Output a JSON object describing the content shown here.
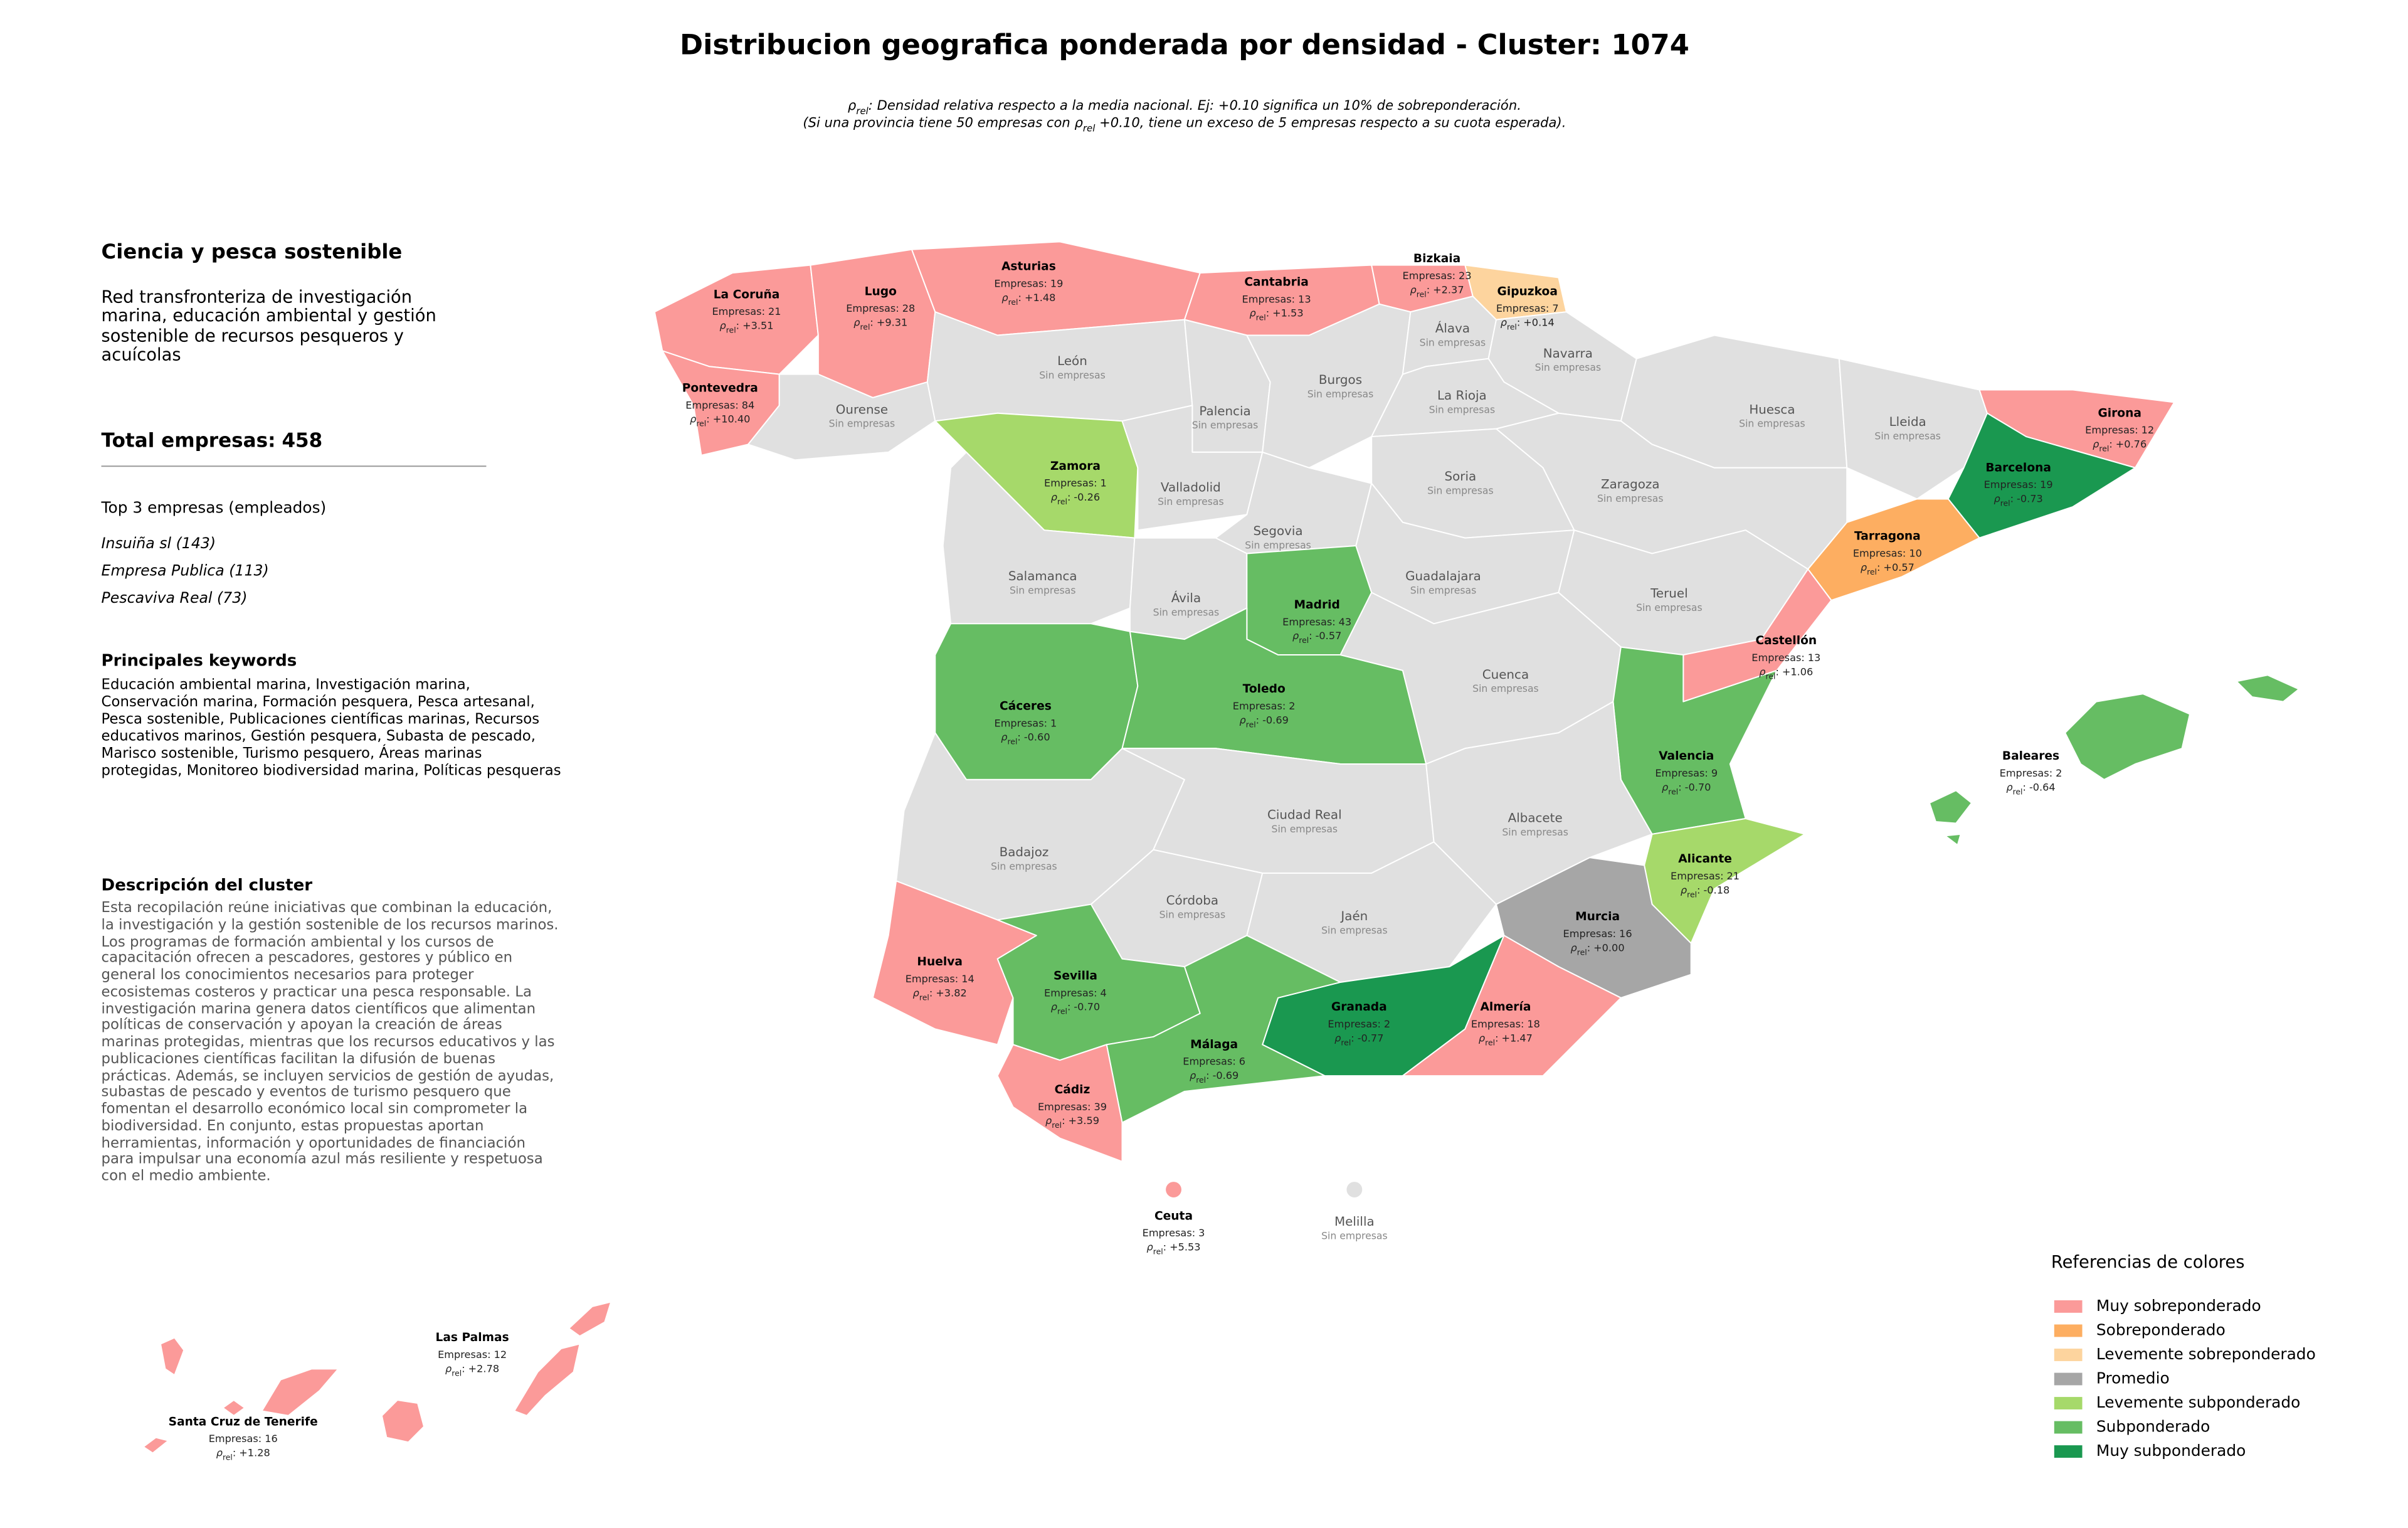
{
  "title": "Distribucion geografica ponderada por densidad - Cluster: 1074",
  "note": {
    "lines": [
      [
        {
          "text": "ρ"
        },
        {
          "text": "rel",
          "subscript": true
        },
        {
          "text": ": Densidad relativa respecto a la media nacional. Ej: +0.10 significa un 10% de sobreponderación."
        }
      ],
      [
        {
          "text": "(Si una provincia tiene 50 empresas con "
        },
        {
          "text": "ρ"
        },
        {
          "text": "rel",
          "subscript": true
        },
        {
          "text": " +0.10, tiene un exceso de 5 empresas respecto a su cuota esperada)."
        }
      ]
    ]
  },
  "panel": {
    "heading": "Ciencia y pesca sostenible",
    "subheading": "Red transfronteriza de investigación marina, educación ambiental y gestión sostenible de recursos pesqueros y acuícolas",
    "total_label": "Total empresas:",
    "total": 458,
    "top_heading": "Top 3 empresas (empleados)",
    "top_companies": [
      "Insuiña sl (143)",
      "Empresa Publica (113)",
      "Pescaviva Real (73)"
    ],
    "keywords_heading": "Principales keywords",
    "keywords": "Educación ambiental marina, Investigación marina, Conservación marina, Formación pesquera, Pesca artesanal, Pesca sostenible, Publicaciones científicas marinas, Recursos educativos marinos, Gestión pesquera, Subasta de pescado, Marisco sostenible, Turismo pesquero, Áreas marinas protegidas, Monitoreo biodiversidad marina, Políticas pesqueras",
    "description_heading": "Descripción del cluster",
    "description": "Esta recopilación reúne iniciativas que combinan la educación, la investigación y la gestión sostenible de los recursos marinos. Los programas de formación ambiental y los cursos de capacitación ofrecen a pescadores, gestores y público en general los conocimientos necesarios para proteger ecosistemas costeros y practicar una pesca responsable. La investigación marina genera datos científicos que alimentan políticas de conservación y apoyan la creación de áreas marinas protegidas, mientras que los recursos educativos y las publicaciones científicas facilitan la difusión de buenas prácticas. Además, se incluyen servicios de gestión de ayudas, subastas de pescado y eventos de turismo pesquero que fomentan el desarrollo económico local sin comprometer la biodiversidad. En conjunto, estas propuestas aportan herramientas, información y oportunidades de financiación para impulsar una economía azul más resiliente y respetuosa con el medio ambiente."
  },
  "labels": {
    "companies": "Empresas:",
    "rho_symbol": "ρ",
    "rho_subscript": "rel",
    "rho_suffix": ":",
    "none": "Sin empresas"
  },
  "provinces": [
    {
      "name": "La Coruña",
      "companies": 21,
      "rho": "+3.51",
      "color": "#fb9a99"
    },
    {
      "name": "Lugo",
      "companies": 28,
      "rho": "+9.31",
      "color": "#fb9a99"
    },
    {
      "name": "Asturias",
      "companies": 19,
      "rho": "+1.48",
      "color": "#fb9a99"
    },
    {
      "name": "Cantabria",
      "companies": 13,
      "rho": "+1.53",
      "color": "#fb9a99"
    },
    {
      "name": "Bizkaia",
      "companies": 23,
      "rho": "+2.37",
      "color": "#fb9a99"
    },
    {
      "name": "Gipuzkoa",
      "companies": 7,
      "rho": "+0.14",
      "color": "#fdd49e"
    },
    {
      "name": "Pontevedra",
      "companies": 84,
      "rho": "+10.40",
      "color": "#fb9a99"
    },
    {
      "name": "Ourense",
      "color": "#e0e0e0"
    },
    {
      "name": "León",
      "color": "#e0e0e0"
    },
    {
      "name": "Palencia",
      "color": "#e0e0e0"
    },
    {
      "name": "Burgos",
      "color": "#e0e0e0"
    },
    {
      "name": "Álava",
      "color": "#e0e0e0"
    },
    {
      "name": "Navarra",
      "color": "#e0e0e0"
    },
    {
      "name": "La Rioja",
      "color": "#e0e0e0"
    },
    {
      "name": "Huesca",
      "color": "#e0e0e0"
    },
    {
      "name": "Lleida",
      "color": "#e0e0e0"
    },
    {
      "name": "Girona",
      "companies": 12,
      "rho": "+0.76",
      "color": "#fb9a99"
    },
    {
      "name": "Barcelona",
      "companies": 19,
      "rho": "-0.73",
      "color": "#1a9850"
    },
    {
      "name": "Tarragona",
      "companies": 10,
      "rho": "+0.57",
      "color": "#fdae61"
    },
    {
      "name": "Zaragoza",
      "color": "#e0e0e0"
    },
    {
      "name": "Soria",
      "color": "#e0e0e0"
    },
    {
      "name": "Zamora",
      "companies": 1,
      "rho": "-0.26",
      "color": "#a6d96a"
    },
    {
      "name": "Valladolid",
      "color": "#e0e0e0"
    },
    {
      "name": "Segovia",
      "color": "#e0e0e0"
    },
    {
      "name": "Salamanca",
      "color": "#e0e0e0"
    },
    {
      "name": "Ávila",
      "color": "#e0e0e0"
    },
    {
      "name": "Madrid",
      "companies": 43,
      "rho": "-0.57",
      "color": "#66bd63"
    },
    {
      "name": "Guadalajara",
      "color": "#e0e0e0"
    },
    {
      "name": "Teruel",
      "color": "#e0e0e0"
    },
    {
      "name": "Castellón",
      "companies": 13,
      "rho": "+1.06",
      "color": "#fb9a99"
    },
    {
      "name": "Cáceres",
      "companies": 1,
      "rho": "-0.60",
      "color": "#66bd63"
    },
    {
      "name": "Toledo",
      "companies": 2,
      "rho": "-0.69",
      "color": "#66bd63"
    },
    {
      "name": "Cuenca",
      "color": "#e0e0e0"
    },
    {
      "name": "Valencia",
      "companies": 9,
      "rho": "-0.70",
      "color": "#66bd63"
    },
    {
      "name": "Badajoz",
      "color": "#e0e0e0"
    },
    {
      "name": "Ciudad Real",
      "color": "#e0e0e0"
    },
    {
      "name": "Albacete",
      "color": "#e0e0e0"
    },
    {
      "name": "Córdoba",
      "color": "#e0e0e0"
    },
    {
      "name": "Jaén",
      "color": "#e0e0e0"
    },
    {
      "name": "Alicante",
      "companies": 21,
      "rho": "-0.18",
      "color": "#a6d96a"
    },
    {
      "name": "Murcia",
      "companies": 16,
      "rho": "+0.00",
      "color": "#a6a6a6"
    },
    {
      "name": "Huelva",
      "companies": 14,
      "rho": "+3.82",
      "color": "#fb9a99"
    },
    {
      "name": "Sevilla",
      "companies": 4,
      "rho": "-0.70",
      "color": "#66bd63"
    },
    {
      "name": "Granada",
      "companies": 2,
      "rho": "-0.77",
      "color": "#1a9850"
    },
    {
      "name": "Almería",
      "companies": 18,
      "rho": "+1.47",
      "color": "#fb9a99"
    },
    {
      "name": "Málaga",
      "companies": 6,
      "rho": "-0.69",
      "color": "#66bd63"
    },
    {
      "name": "Cádiz",
      "companies": 39,
      "rho": "+3.59",
      "color": "#fb9a99"
    },
    {
      "name": "Baleares",
      "companies": 2,
      "rho": "-0.64",
      "color": "#66bd63"
    },
    {
      "name": "Ceuta",
      "companies": 3,
      "rho": "+5.53",
      "color": "#fb9a99"
    },
    {
      "name": "Melilla",
      "color": "#e0e0e0"
    },
    {
      "name": "Las Palmas",
      "companies": 12,
      "rho": "+2.78",
      "color": "#fb9a99"
    },
    {
      "name": "Santa Cruz de Tenerife",
      "companies": 16,
      "rho": "+1.28",
      "color": "#fb9a99"
    }
  ],
  "legend": {
    "title": "Referencias de colores",
    "items": [
      {
        "label": "Muy sobreponderado",
        "color": "#fb9a99"
      },
      {
        "label": "Sobreponderado",
        "color": "#fdae61"
      },
      {
        "label": "Levemente sobreponderado",
        "color": "#fdd49e"
      },
      {
        "label": "Promedio",
        "color": "#a6a6a6"
      },
      {
        "label": "Levemente subponderado",
        "color": "#a6d96a"
      },
      {
        "label": "Subponderado",
        "color": "#66bd63"
      },
      {
        "label": "Muy subponderado",
        "color": "#1a9850"
      }
    ]
  }
}
